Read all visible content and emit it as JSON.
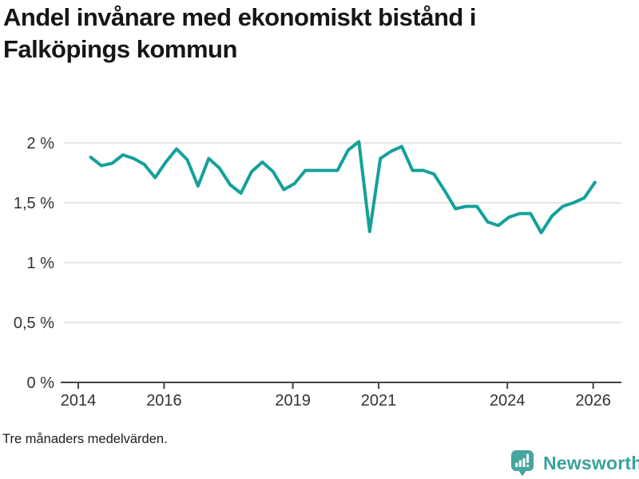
{
  "title": {
    "line1": "Andel invånare med ekonomiskt bistånd i",
    "line2": "Falköpings kommun"
  },
  "footer": {
    "note": "Tre månaders medelvärden."
  },
  "branding": {
    "name": "Newsworthy",
    "logo_color": "#46a69e",
    "text_color": "#38a39a"
  },
  "colors": {
    "line": "#14a19a",
    "grid": "#e6e6e6",
    "axis": "#444444",
    "tick_label": "#333333"
  },
  "chart_data": {
    "type": "line",
    "title": "Andel invånare med ekonomiskt bistånd i Falköpings kommun",
    "xlabel": "",
    "ylabel": "",
    "unit": "%",
    "decimal_separator": ",",
    "grid": "horizontal-only",
    "legend": "none",
    "ylim": [
      0,
      2.2
    ],
    "xlim": [
      2013.6,
      2026.7
    ],
    "y_ticks": [
      {
        "value": 0,
        "label": "0 %"
      },
      {
        "value": 0.5,
        "label": "0,5 %"
      },
      {
        "value": 1,
        "label": "1 %"
      },
      {
        "value": 1.5,
        "label": "1,5 %"
      },
      {
        "value": 2,
        "label": "2 %"
      }
    ],
    "x_ticks": [
      {
        "year": 2014,
        "label": "2014"
      },
      {
        "year": 2016,
        "label": "2016"
      },
      {
        "year": 2019,
        "label": "2019"
      },
      {
        "year": 2021,
        "label": "2021"
      },
      {
        "year": 2024,
        "label": "2024"
      },
      {
        "year": 2026,
        "label": "2026"
      }
    ],
    "x": [
      "2014-04",
      "2014-07",
      "2014-10",
      "2015-01",
      "2015-04",
      "2015-07",
      "2015-10",
      "2016-01",
      "2016-04",
      "2016-07",
      "2016-10",
      "2017-01",
      "2017-04",
      "2017-07",
      "2017-10",
      "2018-01",
      "2018-04",
      "2018-07",
      "2018-10",
      "2019-01",
      "2019-04",
      "2019-07",
      "2019-10",
      "2020-01",
      "2020-04",
      "2020-07",
      "2020-10",
      "2021-01",
      "2021-04",
      "2021-07",
      "2021-10",
      "2022-01",
      "2022-04",
      "2022-07",
      "2022-10",
      "2023-01",
      "2023-04",
      "2023-07",
      "2023-10",
      "2024-01",
      "2024-04",
      "2024-07",
      "2024-10",
      "2025-01",
      "2025-04",
      "2025-07",
      "2025-10",
      "2026-01"
    ],
    "values": [
      1.88,
      1.81,
      1.83,
      1.9,
      1.87,
      1.82,
      1.71,
      1.84,
      1.95,
      1.86,
      1.64,
      1.87,
      1.79,
      1.65,
      1.58,
      1.76,
      1.84,
      1.76,
      1.61,
      1.66,
      1.77,
      1.77,
      1.77,
      1.77,
      1.94,
      2.01,
      1.26,
      1.87,
      1.93,
      1.97,
      1.77,
      1.77,
      1.74,
      1.6,
      1.45,
      1.47,
      1.47,
      1.34,
      1.31,
      1.38,
      1.41,
      1.41,
      1.25,
      1.39,
      1.47,
      1.5,
      1.54,
      1.67
    ]
  }
}
